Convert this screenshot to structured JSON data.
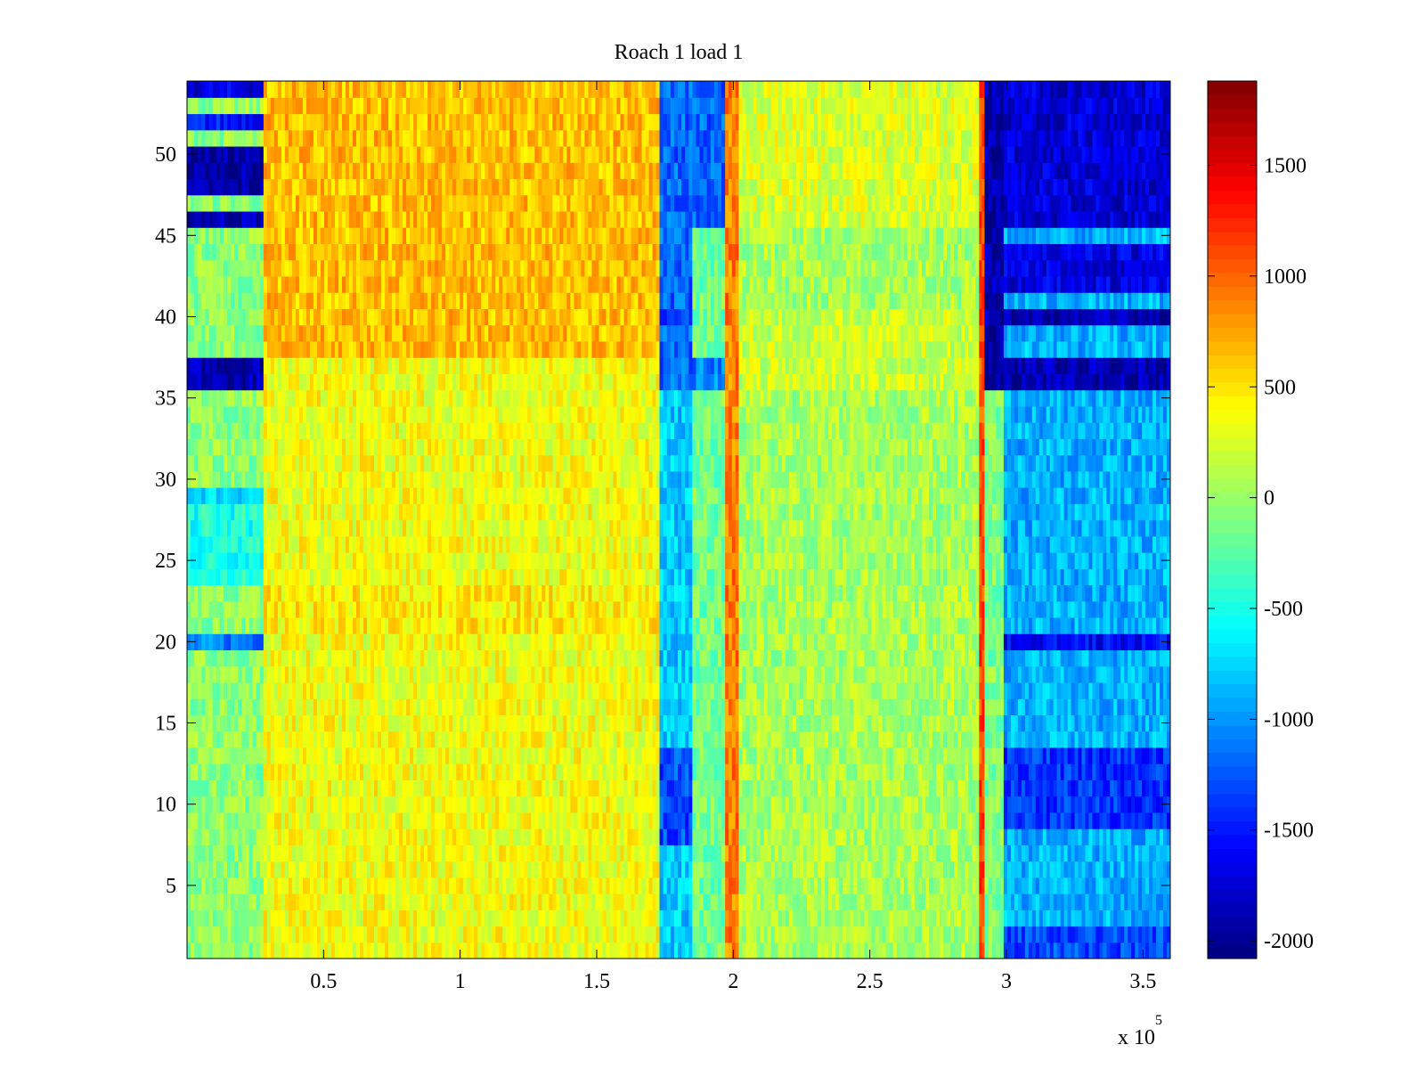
{
  "chart_data": {
    "type": "heatmap",
    "title": "Roach 1 load 1",
    "xlabel": "",
    "ylabel": "",
    "x_multiplier_label": "x 10",
    "x_multiplier_exponent": "5",
    "xlim": [
      0,
      360000
    ],
    "ylim": [
      0.5,
      54.5
    ],
    "x_ticks": [
      {
        "value": 0.5,
        "label": "0.5"
      },
      {
        "value": 1,
        "label": "1"
      },
      {
        "value": 1.5,
        "label": "1.5"
      },
      {
        "value": 2,
        "label": "2"
      },
      {
        "value": 2.5,
        "label": "2.5"
      },
      {
        "value": 3,
        "label": "3"
      },
      {
        "value": 3.5,
        "label": "3.5"
      }
    ],
    "y_ticks": [
      {
        "value": 5,
        "label": "5"
      },
      {
        "value": 10,
        "label": "10"
      },
      {
        "value": 15,
        "label": "15"
      },
      {
        "value": 20,
        "label": "20"
      },
      {
        "value": 25,
        "label": "25"
      },
      {
        "value": 30,
        "label": "30"
      },
      {
        "value": 35,
        "label": "35"
      },
      {
        "value": 40,
        "label": "40"
      },
      {
        "value": 45,
        "label": "45"
      },
      {
        "value": 50,
        "label": "50"
      }
    ],
    "colorbar": {
      "colormap": "jet",
      "range": [
        -2080,
        1880
      ],
      "ticks": [
        {
          "value": 1500,
          "label": "1500"
        },
        {
          "value": 1000,
          "label": "1000"
        },
        {
          "value": 500,
          "label": "500"
        },
        {
          "value": 0,
          "label": "0"
        },
        {
          "value": -500,
          "label": "-500"
        },
        {
          "value": -1000,
          "label": "-1000"
        },
        {
          "value": -1500,
          "label": "-1500"
        },
        {
          "value": -2000,
          "label": "-2000"
        }
      ]
    },
    "rows": 54,
    "x_segments": [
      {
        "x_range": [
          0,
          28000
        ],
        "base_value": -50,
        "description_rows_low": [
          [
            36,
            37,
            -1900
          ],
          [
            46,
            46,
            -1850
          ],
          [
            48,
            50,
            -1950
          ],
          [
            52,
            52,
            -1500
          ],
          [
            54,
            54,
            -1700
          ],
          [
            20,
            20,
            -1100
          ],
          [
            29,
            29,
            -700
          ],
          [
            24,
            28,
            -500
          ]
        ]
      },
      {
        "x_range": [
          28000,
          173000
        ],
        "base_value": 350,
        "description_rows_low": [
          [
            38,
            54,
            650
          ],
          [
            21,
            23,
            450
          ]
        ]
      },
      {
        "x_range": [
          173000,
          185000
        ],
        "base_value": -800,
        "description_rows_low": [
          [
            36,
            54,
            -1200
          ],
          [
            8,
            13,
            -1300
          ],
          [
            40,
            40,
            -1400
          ]
        ]
      },
      {
        "x_range": [
          185000,
          197000
        ],
        "base_value": -150,
        "description_rows_low": [
          [
            46,
            54,
            -1200
          ],
          [
            36,
            37,
            -1100
          ]
        ]
      },
      {
        "x_range": [
          197000,
          202000
        ],
        "base_value": 900,
        "description_rows_low": []
      },
      {
        "x_range": [
          202000,
          290000
        ],
        "base_value": 50,
        "description_rows_low": [
          [
            46,
            54,
            250
          ],
          [
            36,
            40,
            200
          ]
        ]
      },
      {
        "x_range": [
          290000,
          292000
        ],
        "base_value": 1100,
        "description_rows_low": []
      },
      {
        "x_range": [
          292000,
          299000
        ],
        "base_value": -100,
        "description_rows_low": [
          [
            36,
            54,
            -1900
          ]
        ]
      },
      {
        "x_range": [
          299000,
          360000
        ],
        "base_value": -900,
        "description_rows_low": [
          [
            36,
            37,
            -1900
          ],
          [
            40,
            40,
            -1900
          ],
          [
            42,
            44,
            -1700
          ],
          [
            46,
            54,
            -1750
          ],
          [
            20,
            20,
            -1600
          ],
          [
            9,
            13,
            -1400
          ],
          [
            1,
            2,
            -1300
          ]
        ]
      }
    ]
  }
}
